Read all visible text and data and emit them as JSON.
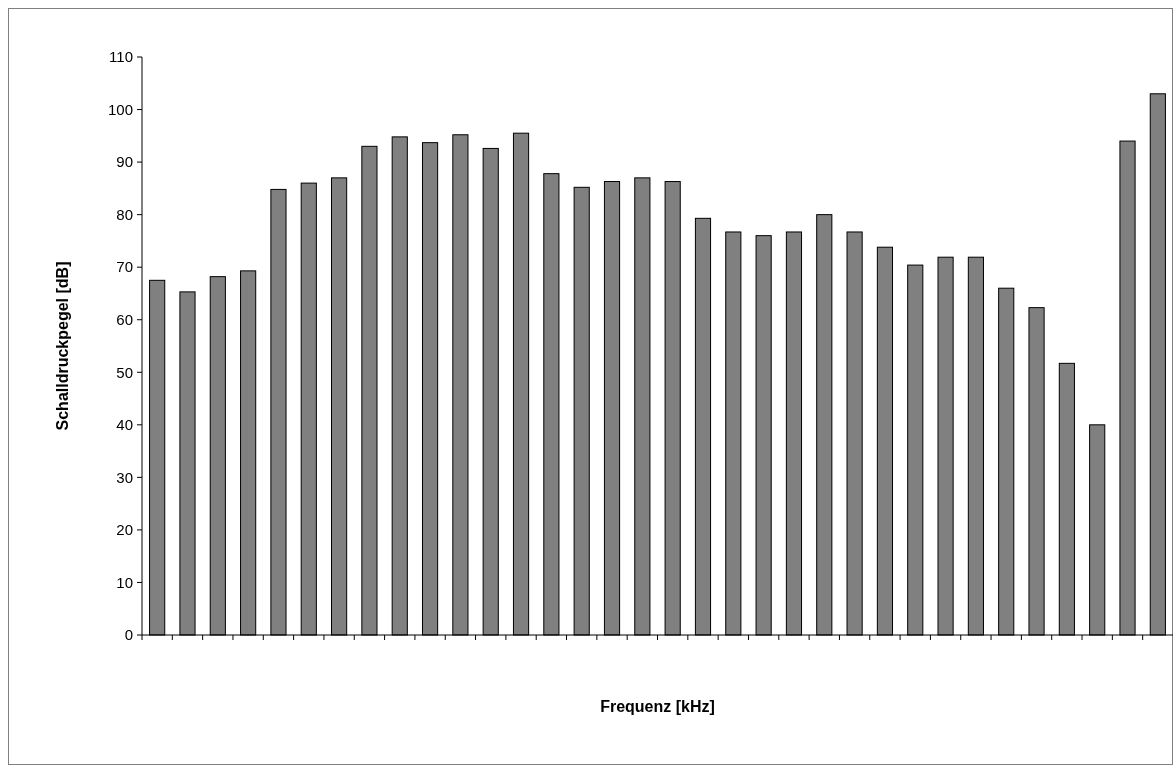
{
  "chart_data": {
    "type": "bar",
    "xlabel": "Frequenz [kHz]",
    "ylabel": "Schalldruckpegel [dB]",
    "categories": [
      null,
      null,
      null,
      null,
      null,
      null,
      null,
      null,
      null,
      null,
      null,
      null,
      null,
      null,
      null,
      null,
      null,
      null,
      null,
      null,
      null,
      null,
      null,
      null,
      null,
      null,
      null,
      null,
      null,
      null,
      null,
      null,
      null,
      null
    ],
    "values": [
      67.5,
      65.3,
      68.2,
      69.3,
      84.8,
      86,
      87,
      93,
      94.8,
      93.7,
      95.2,
      92.6,
      95.5,
      87.8,
      85.2,
      86.3,
      87,
      86.3,
      79.3,
      76.7,
      76,
      76.7,
      80,
      76.7,
      73.8,
      70.4,
      71.9,
      71.9,
      66,
      62.3,
      51.7,
      40,
      94,
      103
    ],
    "color": "#808080",
    "ylim": [
      0,
      110
    ],
    "yticks": [
      0,
      10,
      20,
      30,
      40,
      50,
      60,
      70,
      80,
      90,
      100,
      110
    ],
    "grid": false
  }
}
